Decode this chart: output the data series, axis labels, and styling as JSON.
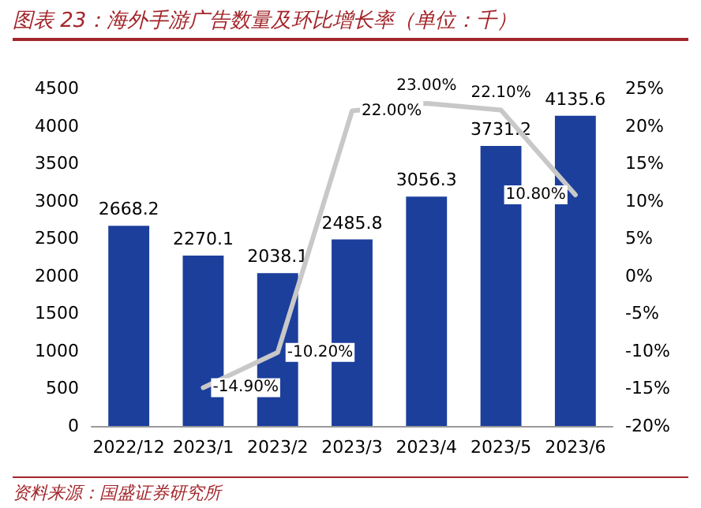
{
  "chart_data": {
    "type": "bar",
    "title": "图表 23：海外手游广告数量及环比增长率（单位：千）",
    "annotations": [
      "资料来源：国盛证券研究所"
    ],
    "categories": [
      "2022/12",
      "2023/1",
      "2023/2",
      "2023/3",
      "2023/4",
      "2023/5",
      "2023/6"
    ],
    "series": [
      {
        "color": "#1c3f9c",
        "values": [
          2668.2,
          2270.1,
          2038.1,
          2485.8,
          3056.3,
          3731.2,
          4135.6
        ],
        "value_labels": [
          "2668.2",
          "2270.1",
          "2038.1",
          "2485.8",
          "3056.3",
          "3731.2",
          "4135.6"
        ]
      },
      {
        "type": "line",
        "axis": "y2",
        "color": "#c8c8c8",
        "values": [
          null,
          -14.9,
          -10.2,
          22.0,
          23.0,
          22.1,
          10.8
        ],
        "value_labels": [
          null,
          "-14.90%",
          "-10.20%",
          "22.00%",
          "23.00%",
          "22.10%",
          "10.80%"
        ]
      }
    ],
    "ylim": [
      0,
      4500
    ],
    "yticks": [
      0,
      500,
      1000,
      1500,
      2000,
      2500,
      3000,
      3500,
      4000,
      4500
    ],
    "y2lim": [
      -20,
      25
    ],
    "y2ticks": [
      {
        "value": -20,
        "label": "-20%"
      },
      {
        "value": -15,
        "label": "-15%"
      },
      {
        "value": -10,
        "label": "-10%"
      },
      {
        "value": -5,
        "label": "-5%"
      },
      {
        "value": 0,
        "label": "0%"
      },
      {
        "value": 5,
        "label": "5%"
      },
      {
        "value": 10,
        "label": "10%"
      },
      {
        "value": 15,
        "label": "15%"
      },
      {
        "value": 20,
        "label": "20%"
      },
      {
        "value": 25,
        "label": "25%"
      }
    ],
    "grid": false,
    "marker": "none"
  }
}
